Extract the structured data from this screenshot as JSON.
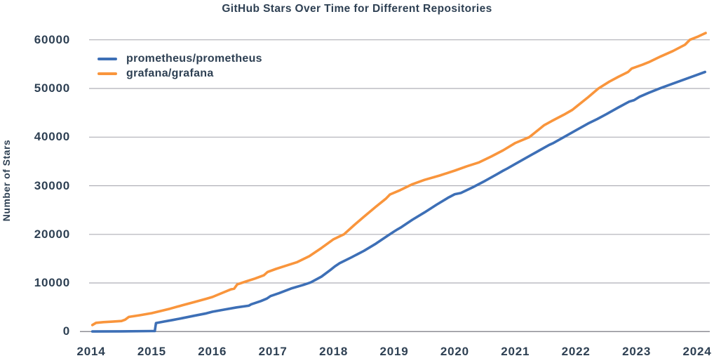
{
  "chart_data": {
    "type": "line",
    "title": "GitHub Stars Over Time for Different Repositories",
    "xlabel": "",
    "ylabel": "Number of Stars",
    "x_ticks": [
      2014,
      2015,
      2016,
      2017,
      2018,
      2019,
      2020,
      2021,
      2022,
      2023,
      2024
    ],
    "y_ticks": [
      0,
      10000,
      20000,
      30000,
      40000,
      50000,
      60000
    ],
    "x_range": [
      2013.95,
      2024.2
    ],
    "y_range": [
      0,
      62000
    ],
    "grid": "horizontal-only",
    "legend_position": "upper-left",
    "colors": {
      "text": "#2E4053",
      "grid": "#AFAFB6",
      "axis": "#8E8E95",
      "background": "#FFFFFF"
    },
    "series": [
      {
        "name": "prometheus/prometheus",
        "color": "#3D6FB6",
        "points": [
          [
            2014.02,
            30
          ],
          [
            2014.5,
            60
          ],
          [
            2015.0,
            110
          ],
          [
            2015.05,
            120
          ],
          [
            2015.07,
            1760
          ],
          [
            2015.2,
            2060
          ],
          [
            2015.35,
            2400
          ],
          [
            2015.5,
            2760
          ],
          [
            2015.7,
            3260
          ],
          [
            2015.9,
            3760
          ],
          [
            2016.0,
            4080
          ],
          [
            2016.2,
            4540
          ],
          [
            2016.4,
            4980
          ],
          [
            2016.6,
            5330
          ],
          [
            2016.64,
            5620
          ],
          [
            2016.8,
            6280
          ],
          [
            2016.9,
            6800
          ],
          [
            2016.96,
            7300
          ],
          [
            2017.1,
            7900
          ],
          [
            2017.3,
            8860
          ],
          [
            2017.5,
            9600
          ],
          [
            2017.62,
            10100
          ],
          [
            2017.8,
            11300
          ],
          [
            2017.95,
            12700
          ],
          [
            2018.02,
            13400
          ],
          [
            2018.1,
            14060
          ],
          [
            2018.3,
            15300
          ],
          [
            2018.5,
            16600
          ],
          [
            2018.7,
            18100
          ],
          [
            2018.9,
            19800
          ],
          [
            2019.0,
            20600
          ],
          [
            2019.06,
            21060
          ],
          [
            2019.12,
            21500
          ],
          [
            2019.3,
            23000
          ],
          [
            2019.5,
            24500
          ],
          [
            2019.7,
            26100
          ],
          [
            2019.9,
            27600
          ],
          [
            2020.0,
            28260
          ],
          [
            2020.1,
            28500
          ],
          [
            2020.3,
            29700
          ],
          [
            2020.5,
            31000
          ],
          [
            2020.7,
            32400
          ],
          [
            2020.8,
            33100
          ],
          [
            2020.86,
            33500
          ],
          [
            2021.0,
            34500
          ],
          [
            2021.2,
            35900
          ],
          [
            2021.4,
            37300
          ],
          [
            2021.56,
            38400
          ],
          [
            2021.63,
            38800
          ],
          [
            2021.8,
            40000
          ],
          [
            2022.0,
            41400
          ],
          [
            2022.2,
            42800
          ],
          [
            2022.35,
            43700
          ],
          [
            2022.5,
            44700
          ],
          [
            2022.7,
            46100
          ],
          [
            2022.88,
            47300
          ],
          [
            2022.96,
            47600
          ],
          [
            2023.05,
            48300
          ],
          [
            2023.2,
            49100
          ],
          [
            2023.4,
            50100
          ],
          [
            2023.6,
            51000
          ],
          [
            2023.8,
            51900
          ],
          [
            2024.0,
            52800
          ],
          [
            2024.13,
            53400
          ]
        ]
      },
      {
        "name": "grafana/grafana",
        "color": "#F9953C",
        "points": [
          [
            2014.02,
            1350
          ],
          [
            2014.08,
            1800
          ],
          [
            2014.2,
            1950
          ],
          [
            2014.35,
            2050
          ],
          [
            2014.5,
            2180
          ],
          [
            2014.56,
            2450
          ],
          [
            2014.62,
            3020
          ],
          [
            2014.8,
            3360
          ],
          [
            2015.0,
            3800
          ],
          [
            2015.15,
            4250
          ],
          [
            2015.3,
            4700
          ],
          [
            2015.5,
            5400
          ],
          [
            2015.7,
            6060
          ],
          [
            2015.9,
            6760
          ],
          [
            2016.0,
            7120
          ],
          [
            2016.15,
            7900
          ],
          [
            2016.3,
            8660
          ],
          [
            2016.36,
            8830
          ],
          [
            2016.41,
            9700
          ],
          [
            2016.55,
            10300
          ],
          [
            2016.7,
            10900
          ],
          [
            2016.85,
            11580
          ],
          [
            2016.91,
            12260
          ],
          [
            2017.05,
            12900
          ],
          [
            2017.2,
            13500
          ],
          [
            2017.4,
            14300
          ],
          [
            2017.6,
            15500
          ],
          [
            2017.8,
            17200
          ],
          [
            2018.0,
            19000
          ],
          [
            2018.17,
            20000
          ],
          [
            2018.35,
            22000
          ],
          [
            2018.5,
            23600
          ],
          [
            2018.7,
            25700
          ],
          [
            2018.86,
            27300
          ],
          [
            2018.93,
            28200
          ],
          [
            2019.1,
            29100
          ],
          [
            2019.3,
            30300
          ],
          [
            2019.5,
            31200
          ],
          [
            2019.75,
            32100
          ],
          [
            2020.0,
            33100
          ],
          [
            2020.2,
            34000
          ],
          [
            2020.4,
            34800
          ],
          [
            2020.6,
            36000
          ],
          [
            2020.8,
            37300
          ],
          [
            2021.0,
            38800
          ],
          [
            2021.23,
            40000
          ],
          [
            2021.4,
            41700
          ],
          [
            2021.47,
            42400
          ],
          [
            2021.6,
            43300
          ],
          [
            2021.8,
            44600
          ],
          [
            2021.94,
            45600
          ],
          [
            2022.0,
            46200
          ],
          [
            2022.2,
            48200
          ],
          [
            2022.37,
            50000
          ],
          [
            2022.55,
            51400
          ],
          [
            2022.7,
            52400
          ],
          [
            2022.86,
            53400
          ],
          [
            2022.92,
            54100
          ],
          [
            2023.1,
            54900
          ],
          [
            2023.2,
            55400
          ],
          [
            2023.4,
            56600
          ],
          [
            2023.6,
            57700
          ],
          [
            2023.8,
            59000
          ],
          [
            2023.88,
            60000
          ],
          [
            2024.0,
            60600
          ],
          [
            2024.14,
            61400
          ]
        ]
      }
    ]
  }
}
